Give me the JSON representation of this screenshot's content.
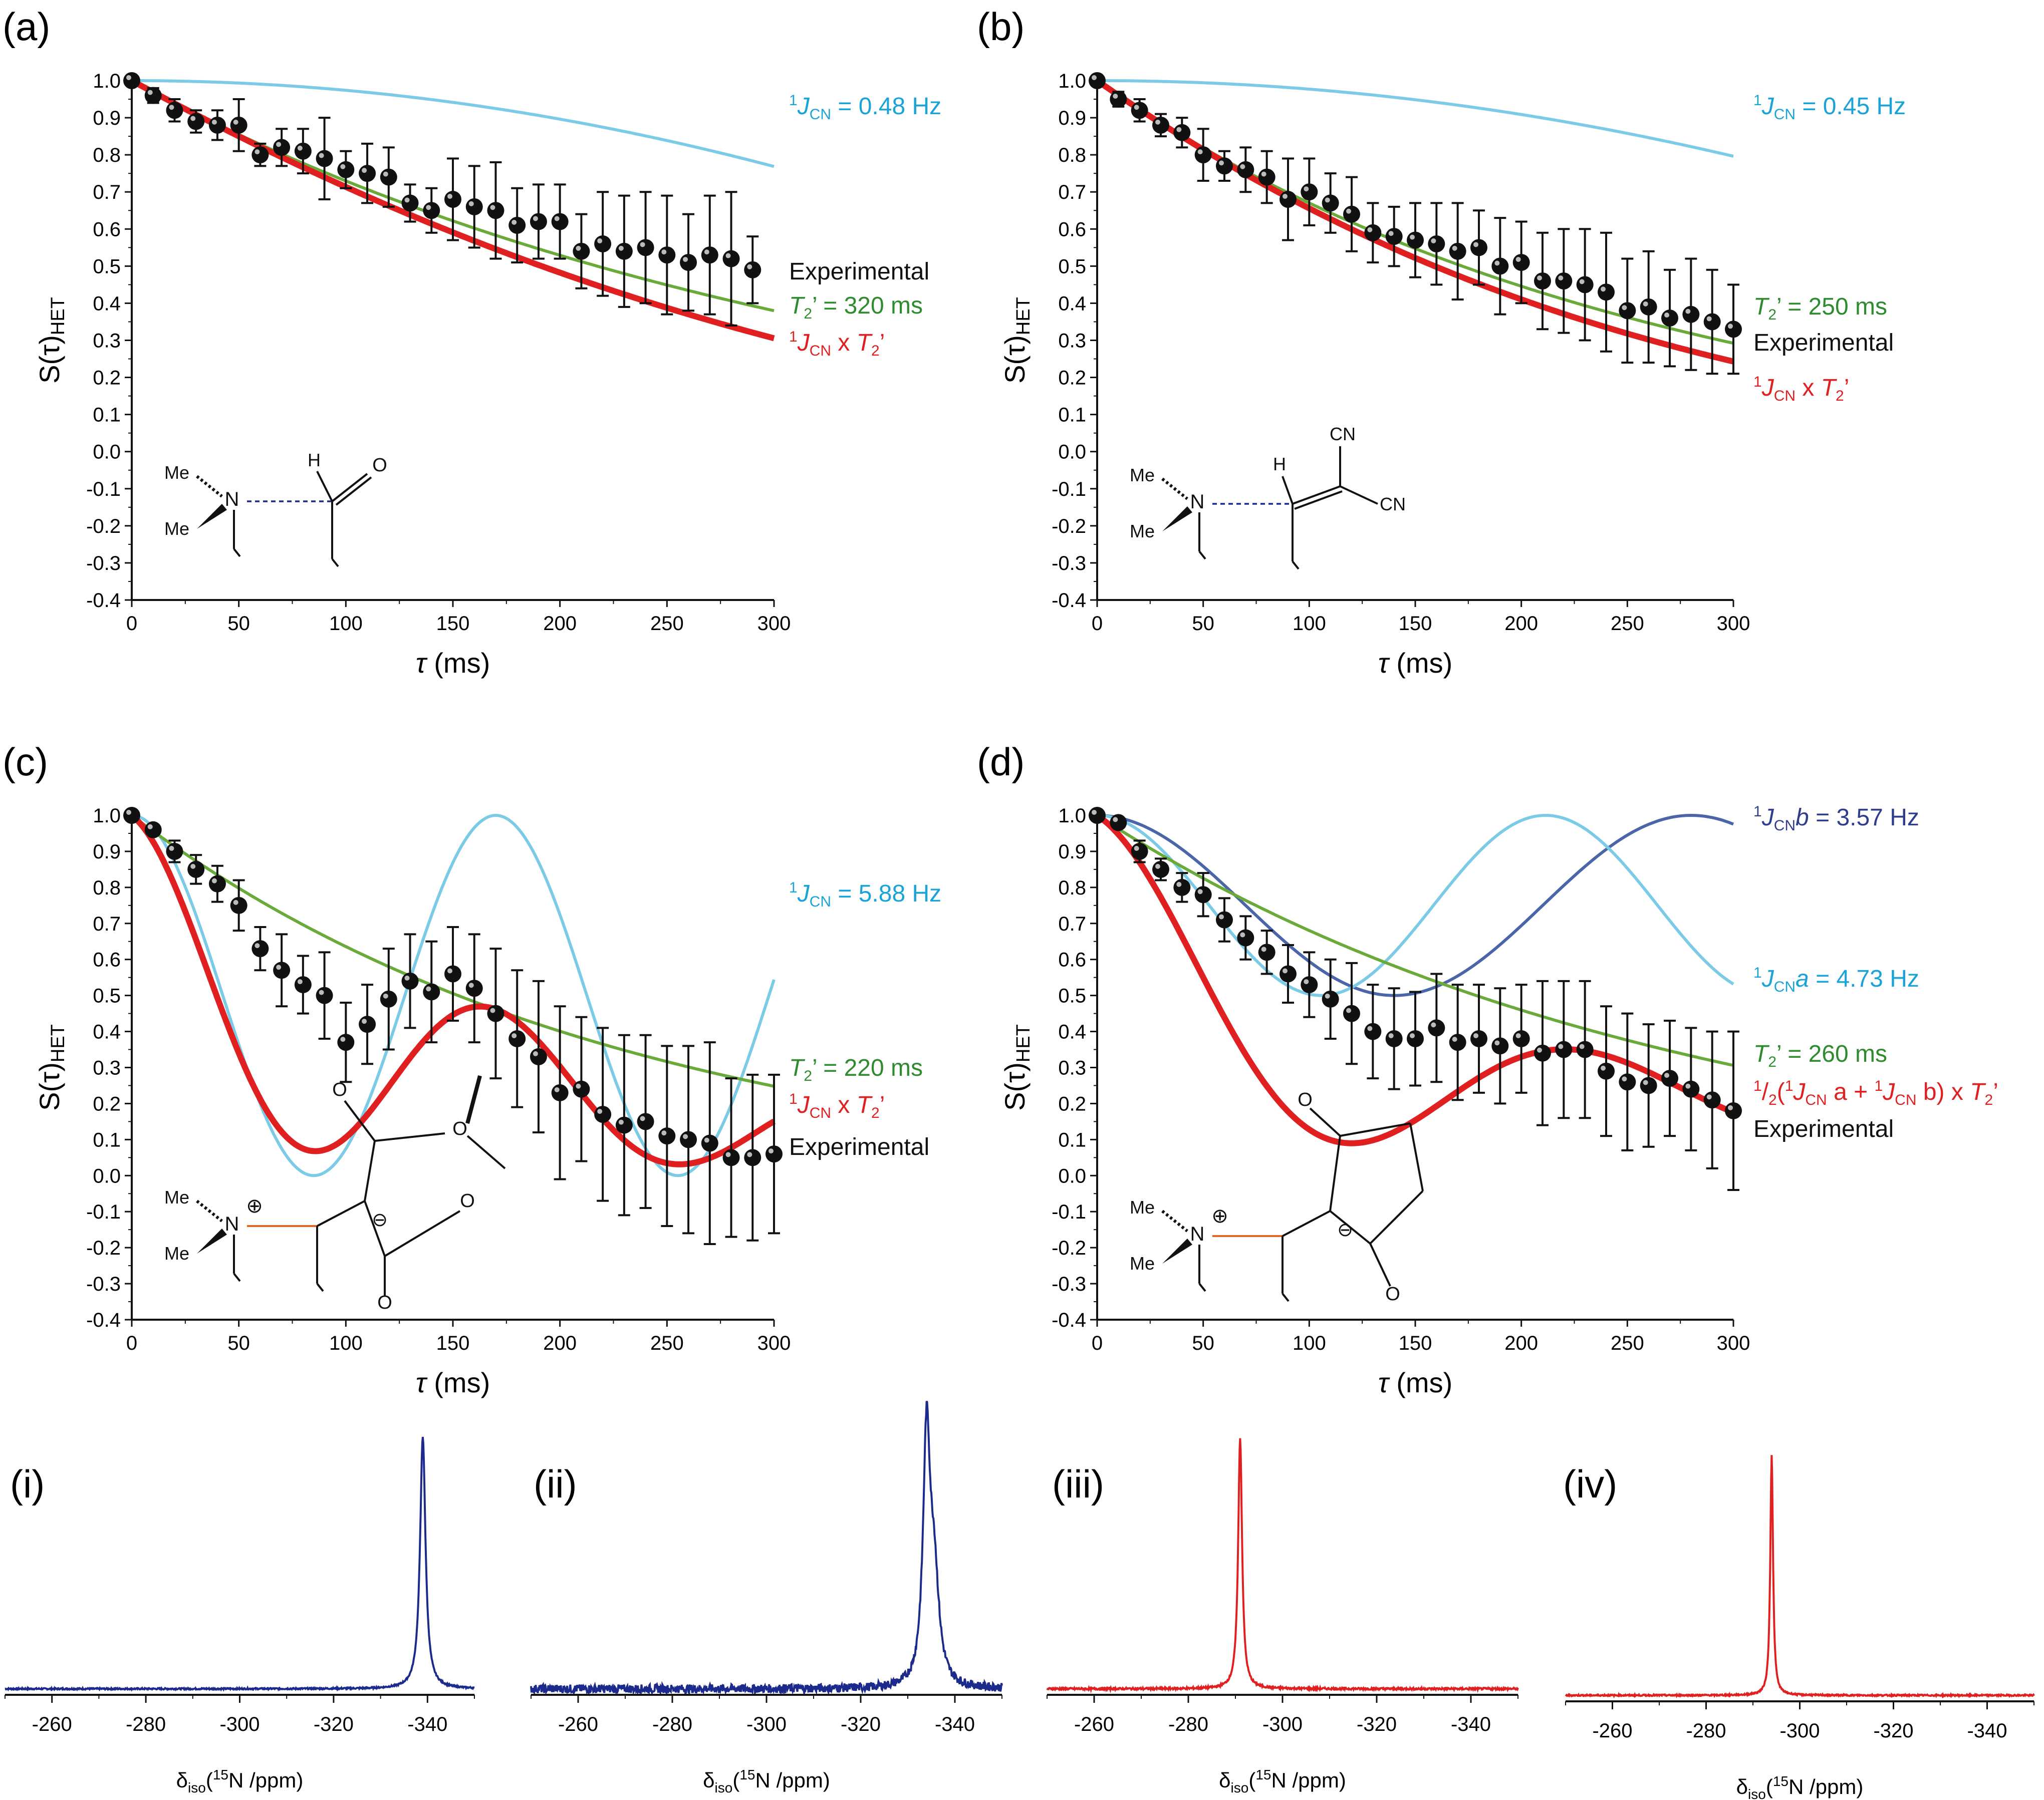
{
  "figure_colors": {
    "experimental_points": "#111111",
    "fit_T2": "#6aaa3a",
    "fit_JxT2": "#e02020",
    "J_light": "#7ccbe6",
    "J_dark": "#4a65a8",
    "spectrum_blue": "#1c2a8c",
    "spectrum_red": "#e02020",
    "anno_black": "#111111",
    "anno_green": "#2e8b2e",
    "anno_red": "#e02020",
    "anno_cyan": "#1aa3d6",
    "anno_navy": "#2e3e8c"
  },
  "chart_data": [
    {
      "id": "a",
      "panel_label": "(a)",
      "type": "scatter",
      "xlabel_symbol": "τ",
      "xlabel_unit": "(ms)",
      "ylabel": "S(τ)",
      "ylabel_sub": "HET",
      "xlim": [
        0,
        300
      ],
      "ylim": [
        -0.4,
        1.0
      ],
      "xticks": [
        "0",
        "50",
        "100",
        "150",
        "200",
        "250",
        "300"
      ],
      "yticks": [
        "1.0",
        "0.9",
        "0.8",
        "0.7",
        "0.6",
        "0.5",
        "0.4",
        "0.3",
        "0.2",
        "0.1",
        "0.0",
        "-0.1",
        "-0.2",
        "-0.3",
        "-0.4"
      ],
      "experimental": {
        "x": [
          0,
          10,
          20,
          30,
          40,
          50,
          60,
          70,
          80,
          90,
          100,
          110,
          120,
          130,
          140,
          150,
          160,
          170,
          180,
          190,
          200,
          210,
          220,
          230,
          240,
          250,
          260,
          270,
          280,
          290
        ],
        "y": [
          1.0,
          0.96,
          0.92,
          0.89,
          0.88,
          0.88,
          0.8,
          0.82,
          0.81,
          0.79,
          0.76,
          0.75,
          0.74,
          0.67,
          0.65,
          0.68,
          0.66,
          0.65,
          0.61,
          0.62,
          0.62,
          0.54,
          0.56,
          0.54,
          0.55,
          0.53,
          0.51,
          0.53,
          0.52,
          0.49
        ],
        "err": [
          0,
          0.02,
          0.03,
          0.03,
          0.04,
          0.07,
          0.03,
          0.05,
          0.06,
          0.11,
          0.05,
          0.08,
          0.08,
          0.05,
          0.06,
          0.11,
          0.11,
          0.13,
          0.1,
          0.1,
          0.1,
          0.1,
          0.14,
          0.15,
          0.15,
          0.16,
          0.13,
          0.16,
          0.18,
          0.09
        ]
      },
      "curves": [
        {
          "kind": "J",
          "color_key": "J_light",
          "J": 0.48
        },
        {
          "kind": "T2",
          "color_key": "fit_T2",
          "T2": 320
        },
        {
          "kind": "JxT2",
          "color_key": "fit_JxT2",
          "J": 0.48,
          "T2": 320
        }
      ],
      "annotations": [
        {
          "color_key": "anno_cyan",
          "sup": "1",
          "main": "J",
          "sub": "CN",
          "rest": " = 0.48 Hz"
        },
        {
          "color_key": "anno_black",
          "plain": "Experimental"
        },
        {
          "color_key": "anno_green",
          "main": "T",
          "sub": "2",
          "rest": "’ = 320 ms"
        },
        {
          "color_key": "anno_red",
          "sup": "1",
          "main": "J",
          "sub": "CN",
          "rest": " x  ",
          "main2": "T",
          "sub2": "2",
          "rest2": "’"
        }
      ],
      "molecule": {
        "me_label": "Me",
        "n_label": "N",
        "h_label": "H",
        "o_label": "O"
      }
    },
    {
      "id": "b",
      "panel_label": "(b)",
      "type": "scatter",
      "xlabel_symbol": "τ",
      "xlabel_unit": "(ms)",
      "ylabel": "S(τ)",
      "ylabel_sub": "HET",
      "xlim": [
        0,
        300
      ],
      "ylim": [
        -0.4,
        1.0
      ],
      "xticks": [
        "0",
        "50",
        "100",
        "150",
        "200",
        "250",
        "300"
      ],
      "yticks": [
        "1.0",
        "0.9",
        "0.8",
        "0.7",
        "0.6",
        "0.5",
        "0.4",
        "0.3",
        "0.2",
        "0.1",
        "0.0",
        "-0.1",
        "-0.2",
        "-0.3",
        "-0.4"
      ],
      "experimental": {
        "x": [
          0,
          10,
          20,
          30,
          40,
          50,
          60,
          70,
          80,
          90,
          100,
          110,
          120,
          130,
          140,
          150,
          160,
          170,
          180,
          190,
          200,
          210,
          220,
          230,
          240,
          250,
          260,
          270,
          280,
          290,
          300
        ],
        "y": [
          1.0,
          0.95,
          0.92,
          0.88,
          0.86,
          0.8,
          0.77,
          0.76,
          0.74,
          0.68,
          0.7,
          0.67,
          0.64,
          0.59,
          0.58,
          0.57,
          0.56,
          0.54,
          0.55,
          0.5,
          0.51,
          0.46,
          0.46,
          0.45,
          0.43,
          0.38,
          0.39,
          0.36,
          0.37,
          0.35,
          0.33
        ],
        "err": [
          0,
          0.02,
          0.03,
          0.03,
          0.04,
          0.07,
          0.04,
          0.06,
          0.07,
          0.11,
          0.09,
          0.08,
          0.1,
          0.08,
          0.08,
          0.1,
          0.11,
          0.13,
          0.1,
          0.13,
          0.11,
          0.13,
          0.14,
          0.15,
          0.16,
          0.14,
          0.15,
          0.13,
          0.15,
          0.14,
          0.12
        ]
      },
      "curves": [
        {
          "kind": "J",
          "color_key": "J_light",
          "J": 0.45
        },
        {
          "kind": "T2",
          "color_key": "fit_T2",
          "T2": 250
        },
        {
          "kind": "JxT2",
          "color_key": "fit_JxT2",
          "J": 0.45,
          "T2": 250
        }
      ],
      "annotations": [
        {
          "color_key": "anno_cyan",
          "sup": "1",
          "main": "J",
          "sub": "CN",
          "rest": " = 0.45 Hz"
        },
        {
          "color_key": "anno_green",
          "main": "T",
          "sub": "2",
          "rest": "’ = 250 ms"
        },
        {
          "color_key": "anno_black",
          "plain": "Experimental"
        },
        {
          "color_key": "anno_red",
          "sup": "1",
          "main": "J",
          "sub": "CN",
          "rest": " x  ",
          "main2": "T",
          "sub2": "2",
          "rest2": "’"
        }
      ],
      "molecule": {
        "me_label": "Me",
        "n_label": "N",
        "h_label": "H",
        "cn_label": "CN"
      }
    },
    {
      "id": "c",
      "panel_label": "(c)",
      "type": "scatter",
      "xlabel_symbol": "τ",
      "xlabel_unit": "(ms)",
      "ylabel": "S(τ)",
      "ylabel_sub": "HET",
      "xlim": [
        0,
        300
      ],
      "ylim": [
        -0.4,
        1.0
      ],
      "xticks": [
        "0",
        "50",
        "100",
        "150",
        "200",
        "250",
        "300"
      ],
      "yticks": [
        "1.0",
        "0.9",
        "0.8",
        "0.7",
        "0.6",
        "0.5",
        "0.4",
        "0.3",
        "0.2",
        "0.1",
        "0.0",
        "-0.1",
        "-0.2",
        "-0.3",
        "-0.4"
      ],
      "experimental": {
        "x": [
          0,
          10,
          20,
          30,
          40,
          50,
          60,
          70,
          80,
          90,
          100,
          110,
          120,
          130,
          140,
          150,
          160,
          170,
          180,
          190,
          200,
          210,
          220,
          230,
          240,
          250,
          260,
          270,
          280,
          290,
          300
        ],
        "y": [
          1.0,
          0.96,
          0.9,
          0.85,
          0.81,
          0.75,
          0.63,
          0.57,
          0.53,
          0.5,
          0.37,
          0.42,
          0.49,
          0.54,
          0.51,
          0.56,
          0.52,
          0.45,
          0.38,
          0.33,
          0.23,
          0.24,
          0.17,
          0.14,
          0.15,
          0.11,
          0.1,
          0.09,
          0.05,
          0.05,
          0.06
        ],
        "err": [
          0,
          0.01,
          0.03,
          0.04,
          0.05,
          0.07,
          0.06,
          0.1,
          0.08,
          0.12,
          0.11,
          0.11,
          0.14,
          0.13,
          0.14,
          0.13,
          0.15,
          0.18,
          0.19,
          0.21,
          0.24,
          0.2,
          0.24,
          0.25,
          0.24,
          0.25,
          0.26,
          0.28,
          0.22,
          0.23,
          0.22
        ]
      },
      "curves": [
        {
          "kind": "J",
          "color_key": "J_light",
          "J": 5.88,
          "offset": 0.5,
          "amp": 0.5
        },
        {
          "kind": "T2",
          "color_key": "fit_T2",
          "T2": 220
        },
        {
          "kind": "JxT2",
          "color_key": "fit_JxT2",
          "J": 5.88,
          "T2": 220
        }
      ],
      "annotations": [
        {
          "color_key": "anno_cyan",
          "sup": "1",
          "main": "J",
          "sub": "CN",
          "rest": " = 5.88 Hz"
        },
        {
          "color_key": "anno_green",
          "main": "T",
          "sub": "2",
          "rest": "’ = 220 ms"
        },
        {
          "color_key": "anno_red",
          "sup": "1",
          "main": "J",
          "sub": "CN",
          "rest": " x  ",
          "main2": "T",
          "sub2": "2",
          "rest2": "’"
        },
        {
          "color_key": "anno_black",
          "plain": "Experimental"
        }
      ],
      "molecule": {
        "me_label": "Me",
        "n_label": "N",
        "charge_plus": "⊕",
        "charge_minus": "⊖",
        "o_label": "O"
      }
    },
    {
      "id": "d",
      "panel_label": "(d)",
      "type": "scatter",
      "xlabel_symbol": "τ",
      "xlabel_unit": "(ms)",
      "ylabel": "S(τ)",
      "ylabel_sub": "HET",
      "xlim": [
        0,
        300
      ],
      "ylim": [
        -0.4,
        1.0
      ],
      "xticks": [
        "0",
        "50",
        "100",
        "150",
        "200",
        "250",
        "300"
      ],
      "yticks": [
        "1.0",
        "0.9",
        "0.8",
        "0.7",
        "0.6",
        "0.5",
        "0.4",
        "0.3",
        "0.2",
        "0.1",
        "0.0",
        "-0.1",
        "-0.2",
        "-0.3",
        "-0.4"
      ],
      "experimental": {
        "x": [
          0,
          10,
          20,
          30,
          40,
          50,
          60,
          70,
          80,
          90,
          100,
          110,
          120,
          130,
          140,
          150,
          160,
          170,
          180,
          190,
          200,
          210,
          220,
          230,
          240,
          250,
          260,
          270,
          280,
          290,
          300
        ],
        "y": [
          1.0,
          0.98,
          0.9,
          0.85,
          0.8,
          0.78,
          0.71,
          0.66,
          0.62,
          0.56,
          0.53,
          0.49,
          0.45,
          0.4,
          0.38,
          0.38,
          0.41,
          0.37,
          0.38,
          0.36,
          0.38,
          0.34,
          0.35,
          0.35,
          0.29,
          0.26,
          0.25,
          0.27,
          0.24,
          0.21,
          0.18
        ],
        "err": [
          0,
          0.01,
          0.03,
          0.03,
          0.04,
          0.06,
          0.06,
          0.06,
          0.06,
          0.08,
          0.09,
          0.11,
          0.14,
          0.13,
          0.14,
          0.13,
          0.15,
          0.16,
          0.15,
          0.16,
          0.15,
          0.2,
          0.19,
          0.19,
          0.18,
          0.19,
          0.17,
          0.16,
          0.17,
          0.19,
          0.22
        ]
      },
      "curves": [
        {
          "kind": "J",
          "color_key": "J_dark",
          "J": 3.57,
          "offset": 0.75,
          "amp": 0.25
        },
        {
          "kind": "J",
          "color_key": "J_light",
          "J": 4.73,
          "offset": 0.75,
          "amp": 0.25
        },
        {
          "kind": "T2",
          "color_key": "fit_T2",
          "T2": 260
        },
        {
          "kind": "JabxT2",
          "color_key": "fit_JxT2",
          "Ja": 4.73,
          "Jb": 3.57,
          "T2": 260
        }
      ],
      "annotations": [
        {
          "color_key": "anno_navy",
          "sup": "1",
          "main": "J",
          "sub": "CN",
          "main2": "b",
          "rest2": " = 3.57 Hz"
        },
        {
          "color_key": "anno_cyan",
          "sup": "1",
          "main": "J",
          "sub": "CN",
          "main2": "a",
          "rest2": " = 4.73 Hz"
        },
        {
          "color_key": "anno_green",
          "main": "T",
          "sub": "2",
          "rest": "’ = 260 ms"
        },
        {
          "color_key": "anno_red",
          "complex": true,
          "pieces": [
            "1",
            "/",
            "2",
            "(",
            "1",
            "J",
            "CN",
            " a + ",
            "1",
            "J",
            "CN",
            " b",
            ") x  ",
            "T",
            "2",
            "’"
          ]
        },
        {
          "color_key": "anno_black",
          "plain": "Experimental"
        }
      ],
      "molecule": {
        "me_label": "Me",
        "n_label": "N",
        "charge_plus": "⊕",
        "charge_minus": "⊖",
        "o_label": "O"
      }
    },
    {
      "id": "i",
      "panel_label": "(i)",
      "type": "line",
      "xlabel_main": "δ",
      "xlabel_sub": "iso",
      "xlabel_rest_pre": "(",
      "xlabel_sup": "15",
      "xlabel_rest": "N /ppm)",
      "xlim": [
        -250,
        -350
      ],
      "xticks": [
        "-260",
        "-280",
        "-300",
        "-320",
        "-340"
      ],
      "color_key": "spectrum_blue",
      "peaks": [
        {
          "center_ppm": -339,
          "width_ppm": 0.7,
          "height": 1.0
        }
      ],
      "noise": 0.006
    },
    {
      "id": "ii",
      "panel_label": "(ii)",
      "type": "line",
      "xlabel_main": "δ",
      "xlabel_sub": "iso",
      "xlabel_rest_pre": "(",
      "xlabel_sup": "15",
      "xlabel_rest": "N /ppm)",
      "xlim": [
        -250,
        -350
      ],
      "xticks": [
        "-260",
        "-280",
        "-300",
        "-320",
        "-340"
      ],
      "color_key": "spectrum_blue",
      "peaks": [
        {
          "center_ppm": -334,
          "width_ppm": 0.9,
          "height": 1.0
        },
        {
          "center_ppm": -335.6,
          "width_ppm": 1.2,
          "height": 0.42
        }
      ],
      "noise": 0.035
    },
    {
      "id": "iii",
      "panel_label": "(iii)",
      "type": "line",
      "xlabel_main": "δ",
      "xlabel_sub": "iso",
      "xlabel_rest_pre": "(",
      "xlabel_sup": "15",
      "xlabel_rest": "N /ppm)",
      "xlim": [
        -250,
        -350
      ],
      "xticks": [
        "-260",
        "-280",
        "-300",
        "-320",
        "-340"
      ],
      "color_key": "spectrum_red",
      "peaks": [
        {
          "center_ppm": -291,
          "width_ppm": 0.5,
          "height": 1.0
        }
      ],
      "noise": 0.008
    },
    {
      "id": "iv",
      "panel_label": "(iv)",
      "type": "line",
      "xlabel_main": "δ",
      "xlabel_sub": "iso",
      "xlabel_rest_pre": "(",
      "xlabel_sup": "15",
      "xlabel_rest": "N /ppm)",
      "xlim": [
        -250,
        -350
      ],
      "xticks": [
        "-260",
        "-280",
        "-300",
        "-320",
        "-340"
      ],
      "color_key": "spectrum_red",
      "peaks": [
        {
          "center_ppm": -294,
          "width_ppm": 0.35,
          "height": 1.0
        }
      ],
      "noise": 0.006
    }
  ]
}
